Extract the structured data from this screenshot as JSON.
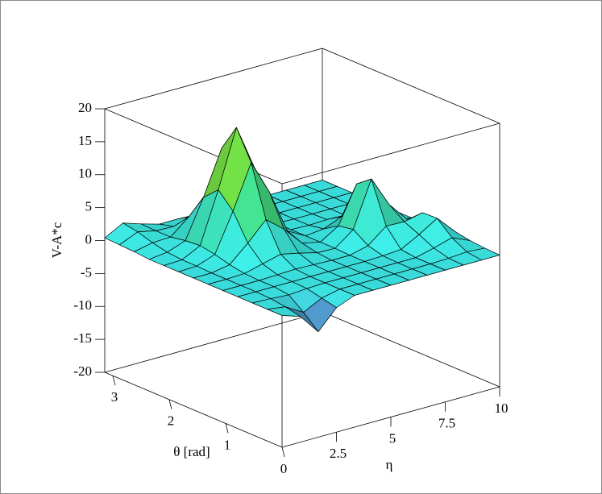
{
  "chart_data": {
    "type": "surface",
    "xlabel": "θ [rad]",
    "ylabel": "η",
    "zlabel": "V-A*c",
    "x": [
      0,
      0.262,
      0.524,
      0.785,
      1.047,
      1.309,
      1.571,
      1.833,
      2.094,
      2.356,
      2.618,
      2.88,
      3.142
    ],
    "y": [
      0,
      0.833,
      1.667,
      2.5,
      3.333,
      4.167,
      5,
      5.833,
      6.667,
      7.5,
      8.333,
      9.167,
      10
    ],
    "z": [
      [
        0,
        -0.9,
        -4.0,
        -1.1,
        0,
        0,
        0,
        0,
        0,
        0,
        0,
        0,
        0
      ],
      [
        0,
        -0.4,
        -2.0,
        -0.6,
        0,
        0,
        0,
        0,
        0,
        0,
        0.1,
        0.3,
        0.1
      ],
      [
        0,
        -0.1,
        -0.3,
        -0.1,
        0,
        0,
        0,
        0,
        0,
        0,
        0.7,
        1.5,
        0.3
      ],
      [
        0,
        0,
        0,
        0,
        0,
        0,
        0,
        0,
        0.1,
        0.3,
        1.8,
        3.5,
        0.7
      ],
      [
        0,
        0,
        0,
        0.1,
        0.2,
        0.1,
        0,
        0,
        0.7,
        2.9,
        2.8,
        3.4,
        0.7
      ],
      [
        0,
        0,
        0.1,
        0.8,
        1.5,
        0.9,
        0.2,
        0.1,
        2.2,
        9.1,
        4.4,
        1.4,
        0.3
      ],
      [
        0,
        0,
        0.5,
        3.0,
        5.8,
        3.6,
        0.7,
        0.1,
        1.8,
        7.4,
        3.2,
        0.3,
        0
      ],
      [
        0,
        0.1,
        1.1,
        6.9,
        13.5,
        8.3,
        1.6,
        0.1,
        0.4,
        1.5,
        0.6,
        0,
        0
      ],
      [
        0,
        0.1,
        1.5,
        9.2,
        17.9,
        11.0,
        2.1,
        0.1,
        0,
        0.1,
        0,
        0,
        0
      ],
      [
        0,
        0.3,
        1.3,
        7.1,
        13.8,
        8.5,
        1.6,
        0.1,
        0,
        0,
        0,
        0,
        0
      ],
      [
        0.2,
        0.8,
        0.9,
        3.2,
        6.1,
        3.8,
        0.7,
        0,
        0,
        0,
        0,
        0,
        0
      ],
      [
        0.3,
        1.5,
        0.9,
        0.8,
        1.6,
        1.0,
        0.2,
        0,
        0,
        0,
        0,
        0,
        0
      ],
      [
        0.4,
        1.9,
        1.0,
        0.2,
        0.2,
        0.1,
        0,
        0,
        0,
        0,
        0,
        0,
        0
      ]
    ],
    "xlim": [
      0,
      3.142
    ],
    "xticks": [
      0,
      1,
      2,
      3
    ],
    "ylim": [
      0,
      10
    ],
    "yticks": [
      2.5,
      5,
      7.5,
      10
    ],
    "zlim": [
      -20,
      20
    ],
    "zticks": [
      -20,
      -15,
      -10,
      -5,
      0,
      5,
      10,
      15,
      20
    ],
    "colormap": [
      "#6a2aa0",
      "#3ff0f0",
      "#3ff0e0",
      "#45f0a0",
      "#50ee50",
      "#c8f040",
      "#fafa40"
    ]
  }
}
